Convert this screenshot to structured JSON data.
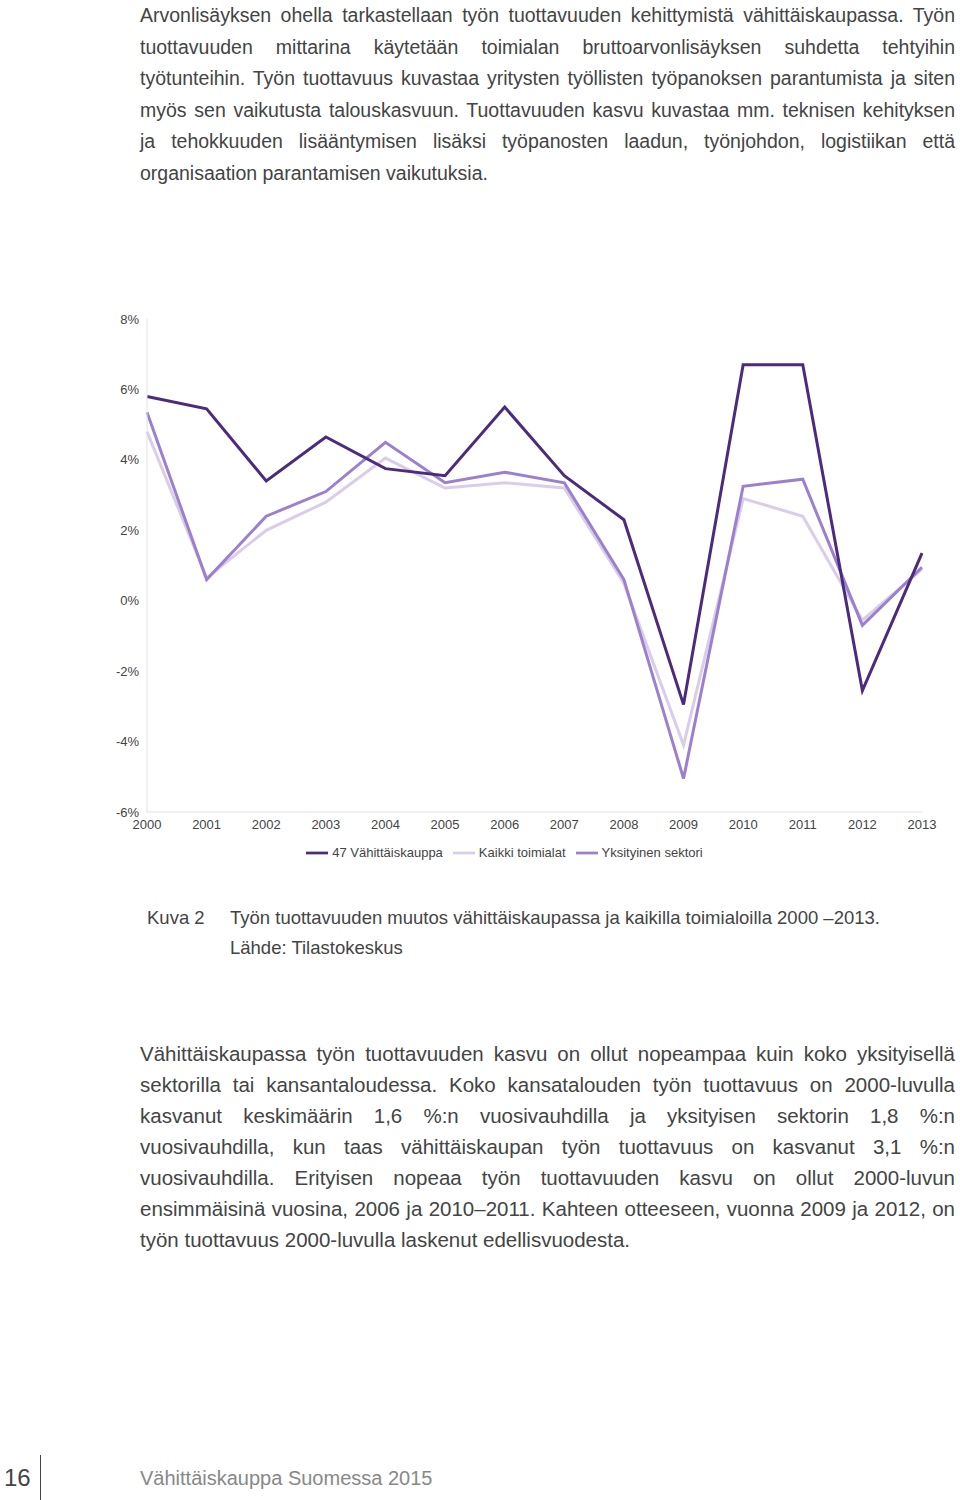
{
  "intro_paragraph": "Arvonlisäyksen ohella tarkastellaan työn tuottavuuden kehittymistä vähittäiskaupassa. Työn tuottavuuden mittarina käytetään toimialan bruttoarvonlisäyksen suhdetta tehtyihin työtunteihin. Työn tuottavuus kuvastaa yritysten työllisten työpanoksen parantumista ja siten myös sen vaikutusta talouskasvuun. Tuottavuuden kasvu kuvastaa mm. teknisen kehityksen ja tehokkuuden lisääntymisen lisäksi työpanosten laadun, työnjohdon, logistiikan että organisaation parantamisen vaikutuksia.",
  "chart_data": {
    "type": "line",
    "categories": [
      "2000",
      "2001",
      "2002",
      "2003",
      "2004",
      "2005",
      "2006",
      "2007",
      "2008",
      "2009",
      "2010",
      "2011",
      "2012",
      "2013"
    ],
    "series": [
      {
        "name": "Kaikki toimialat",
        "color": "#d9cde9",
        "values": [
          4.8,
          0.65,
          2.0,
          2.8,
          4.05,
          3.2,
          3.35,
          3.2,
          0.5,
          -4.1,
          2.9,
          2.4,
          -0.55,
          0.9
        ]
      },
      {
        "name": "Yksityinen sektori",
        "color": "#9b80cf",
        "values": [
          5.35,
          0.6,
          2.4,
          3.1,
          4.5,
          3.35,
          3.65,
          3.35,
          0.6,
          -5.05,
          3.25,
          3.45,
          -0.7,
          0.95
        ]
      },
      {
        "name": "47 Vähittäiskauppa",
        "color": "#4b2b7d",
        "values": [
          5.8,
          5.45,
          3.4,
          4.65,
          3.75,
          3.55,
          5.5,
          3.55,
          2.3,
          -2.95,
          6.7,
          6.7,
          -2.55,
          1.35
        ]
      }
    ],
    "ylim": [
      -6,
      8
    ],
    "yticks": [
      {
        "value": -6,
        "label": "-6%"
      },
      {
        "value": -4,
        "label": "-4%"
      },
      {
        "value": -2,
        "label": "-2%"
      },
      {
        "value": 0,
        "label": "0%"
      },
      {
        "value": 2,
        "label": "2%"
      },
      {
        "value": 4,
        "label": "4%"
      },
      {
        "value": 6,
        "label": "6%"
      },
      {
        "value": 8,
        "label": "8%"
      }
    ],
    "grid": false,
    "legend": "bottom"
  },
  "caption": {
    "label": "Kuva 2",
    "text": "Työn tuottavuuden muutos vähittäiskaupassa ja kaikilla toimialoilla 2000 –2013.",
    "source": "Lähde: Tilastokeskus"
  },
  "body_paragraph": "Vähittäiskaupassa työn tuottavuuden kasvu on ollut nopeampaa kuin koko yksityisellä sektorilla tai kansantaloudessa. Koko kansatalouden työn tuottavuus on 2000-luvulla kasvanut keskimäärin 1,6 %:n vuosivauhdilla ja yksityisen sektorin 1,8 %:n vuosivauhdilla, kun taas vähittäiskaupan työn tuottavuus on kasvanut 3,1 %:n vuosivauhdilla. Erityisen nopeaa työn tuottavuuden kasvu on ollut 2000-luvun ensimmäisinä vuosina, 2006 ja 2010–2011. Kahteen otteeseen, vuonna 2009 ja 2012, on työn tuottavuus 2000-luvulla laskenut edellisvuodesta.",
  "footer": {
    "page_number": "16",
    "publication": "Vähittäiskauppa Suomessa 2015"
  }
}
